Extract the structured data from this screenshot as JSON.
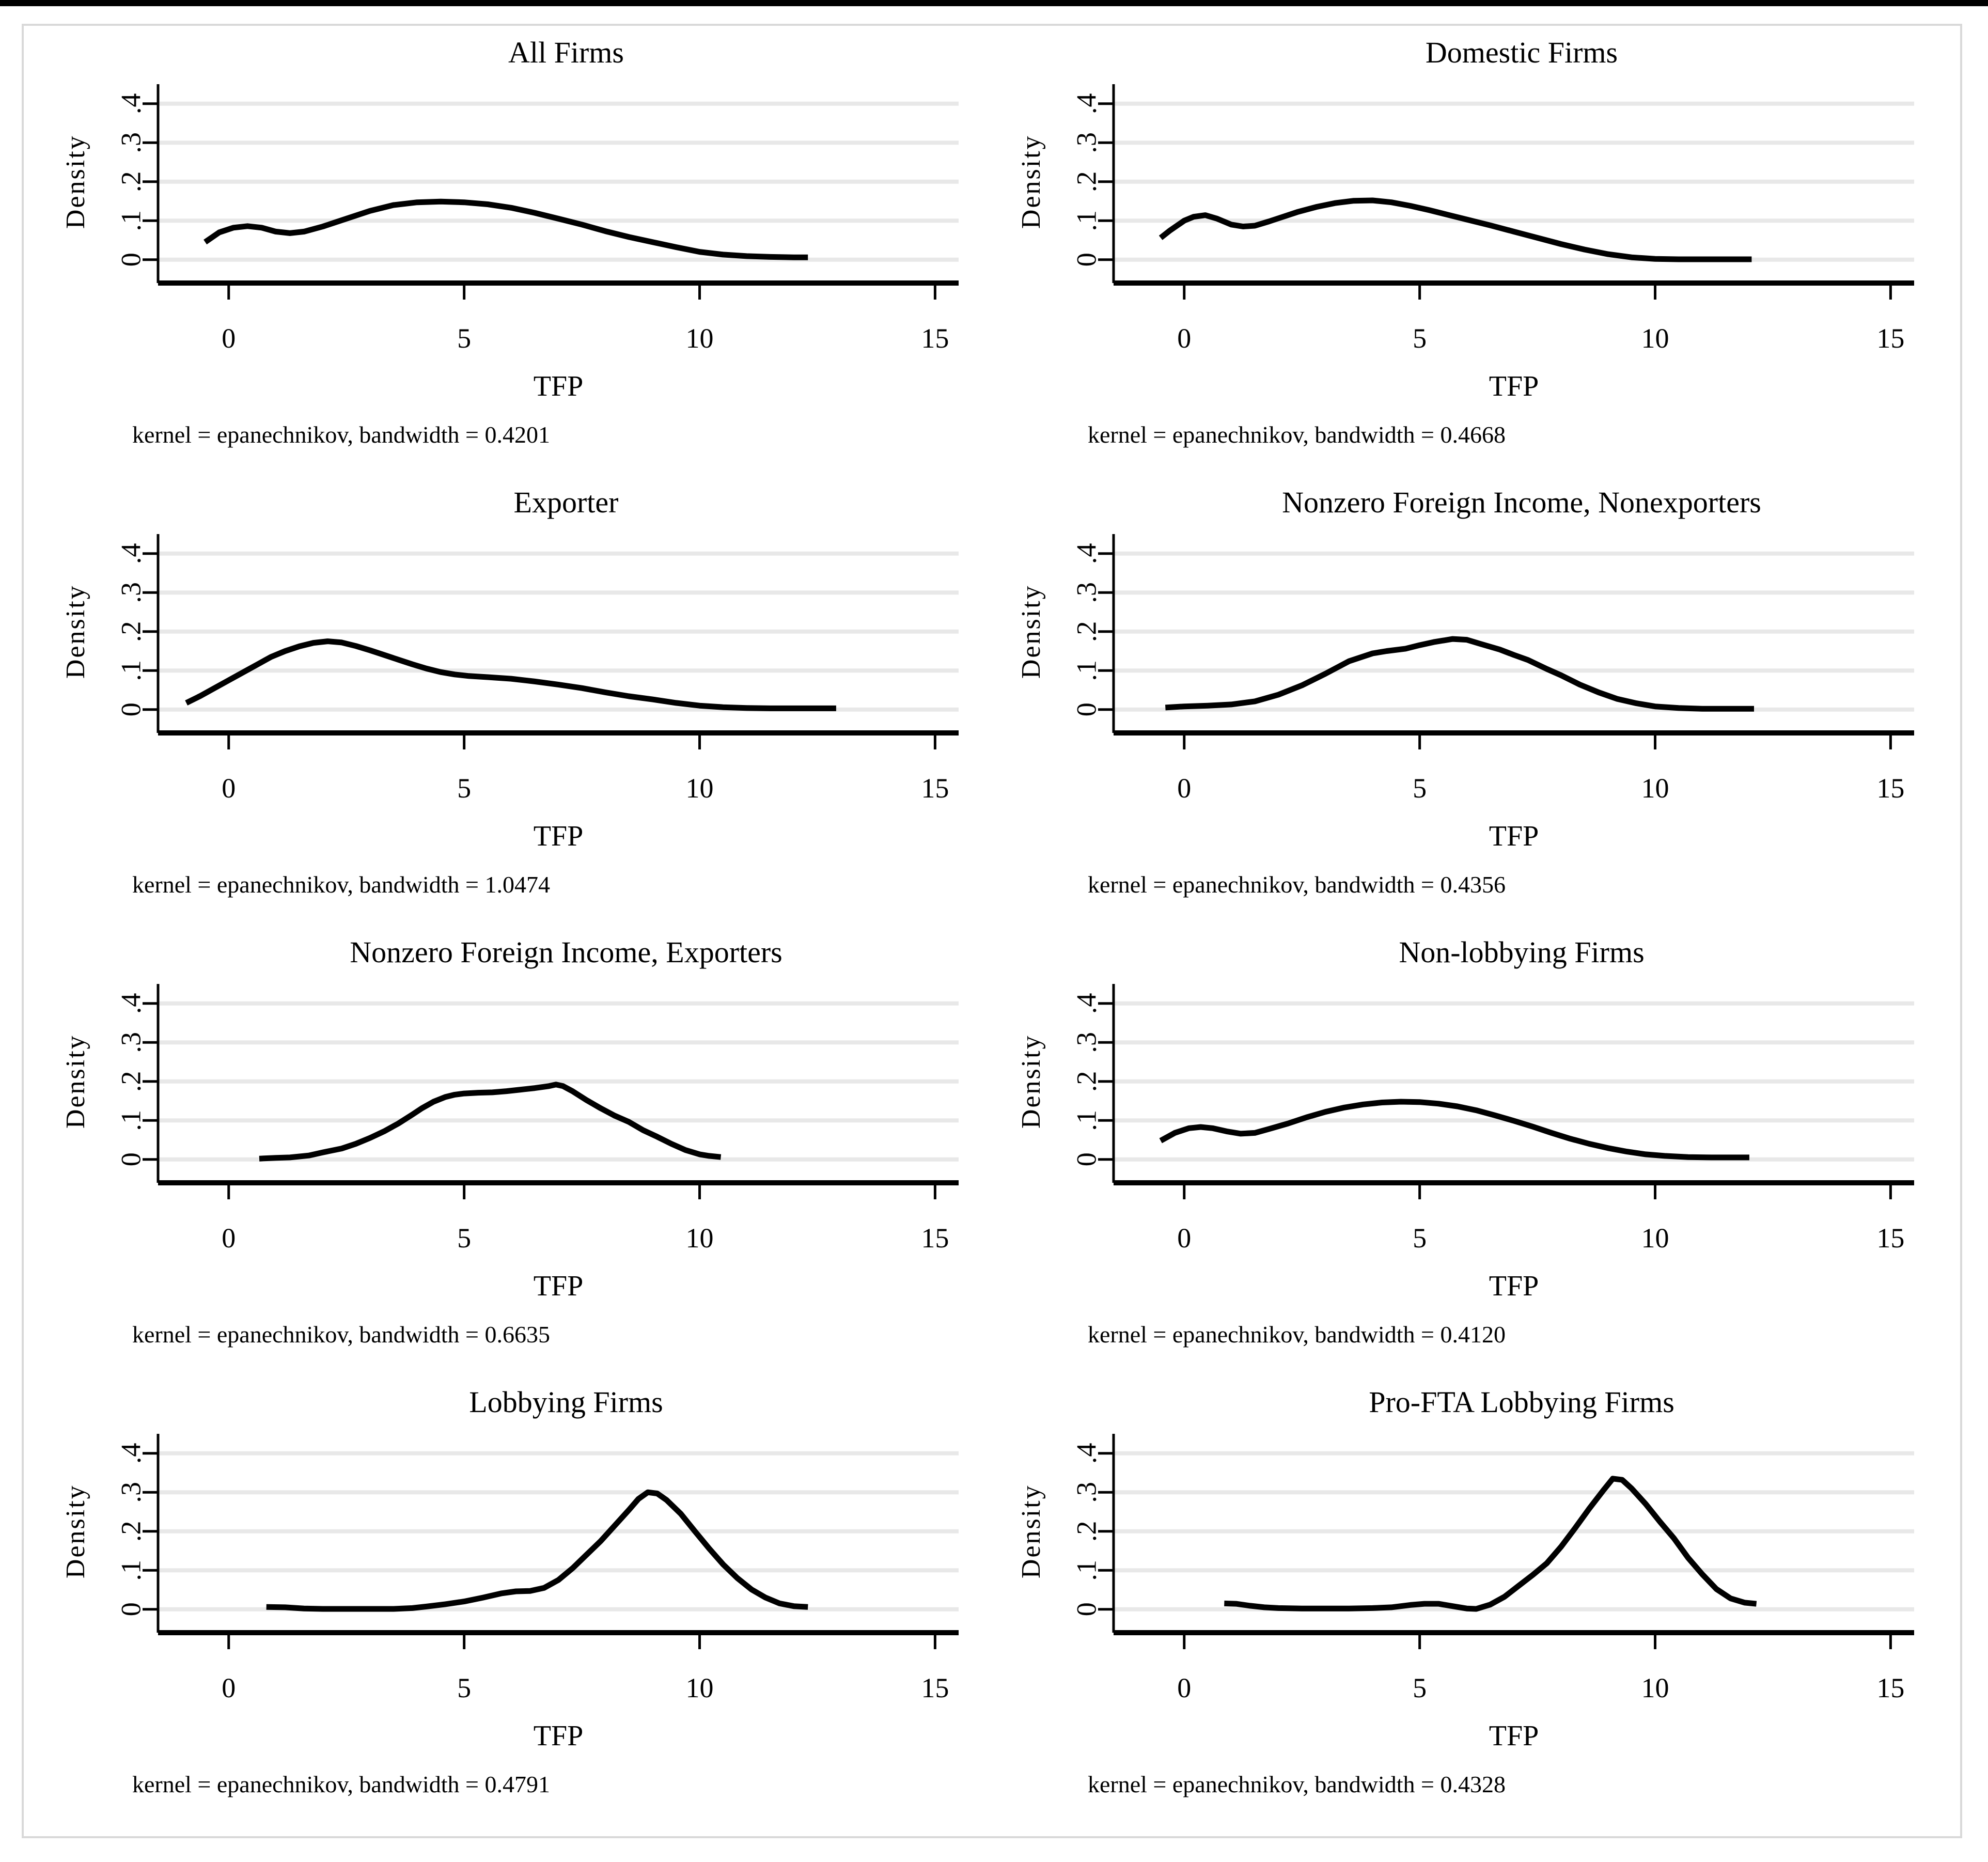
{
  "figure": {
    "ylabel": "Density",
    "xlabel": "TFP",
    "y_tick_labels": [
      "0",
      ".1",
      ".2",
      ".3",
      ".4"
    ],
    "x_tick_labels": [
      "0",
      "5",
      "10",
      "15"
    ],
    "curve_color": "#000000",
    "gridline_color": "#e8e8e8",
    "background_color": "#ffffff"
  },
  "chart_data": [
    {
      "type": "line",
      "title": "All Firms",
      "kernel": "epanechnikov",
      "bandwidth": "0.4201",
      "caption": "kernel = epanechnikov, bandwidth = 0.4201",
      "xlabel": "TFP",
      "ylabel": "Density",
      "xlim": [
        -1.5,
        15.5
      ],
      "ylim": [
        -0.06,
        0.45
      ],
      "x_ticks": [
        0,
        5,
        10,
        15
      ],
      "y_ticks": [
        0,
        0.1,
        0.2,
        0.3,
        0.4
      ],
      "grid": "horizontal",
      "legend": "none",
      "points": [
        [
          -0.5,
          0.045
        ],
        [
          -0.2,
          0.07
        ],
        [
          0.1,
          0.082
        ],
        [
          0.4,
          0.086
        ],
        [
          0.7,
          0.082
        ],
        [
          1.0,
          0.072
        ],
        [
          1.3,
          0.068
        ],
        [
          1.6,
          0.072
        ],
        [
          2.0,
          0.085
        ],
        [
          2.5,
          0.105
        ],
        [
          3.0,
          0.125
        ],
        [
          3.5,
          0.14
        ],
        [
          4.0,
          0.147
        ],
        [
          4.5,
          0.149
        ],
        [
          5.0,
          0.147
        ],
        [
          5.5,
          0.142
        ],
        [
          6.0,
          0.133
        ],
        [
          6.5,
          0.12
        ],
        [
          7.0,
          0.105
        ],
        [
          7.5,
          0.09
        ],
        [
          8.0,
          0.073
        ],
        [
          8.5,
          0.058
        ],
        [
          9.0,
          0.045
        ],
        [
          9.5,
          0.032
        ],
        [
          10.0,
          0.02
        ],
        [
          10.5,
          0.013
        ],
        [
          11.0,
          0.009
        ],
        [
          11.5,
          0.007
        ],
        [
          12.0,
          0.006
        ],
        [
          12.3,
          0.006
        ]
      ]
    },
    {
      "type": "line",
      "title": "Domestic Firms",
      "kernel": "epanechnikov",
      "bandwidth": "0.4668",
      "caption": "kernel = epanechnikov, bandwidth = 0.4668",
      "xlabel": "TFP",
      "ylabel": "Density",
      "xlim": [
        -1.5,
        15.5
      ],
      "ylim": [
        -0.06,
        0.45
      ],
      "x_ticks": [
        0,
        5,
        10,
        15
      ],
      "y_ticks": [
        0,
        0.1,
        0.2,
        0.3,
        0.4
      ],
      "grid": "horizontal",
      "legend": "none",
      "points": [
        [
          -0.5,
          0.056
        ],
        [
          -0.3,
          0.075
        ],
        [
          0.0,
          0.1
        ],
        [
          0.2,
          0.11
        ],
        [
          0.45,
          0.114
        ],
        [
          0.7,
          0.105
        ],
        [
          1.0,
          0.09
        ],
        [
          1.25,
          0.085
        ],
        [
          1.5,
          0.087
        ],
        [
          1.8,
          0.098
        ],
        [
          2.1,
          0.11
        ],
        [
          2.4,
          0.122
        ],
        [
          2.8,
          0.135
        ],
        [
          3.2,
          0.145
        ],
        [
          3.6,
          0.151
        ],
        [
          4.0,
          0.152
        ],
        [
          4.4,
          0.147
        ],
        [
          4.8,
          0.138
        ],
        [
          5.2,
          0.127
        ],
        [
          5.6,
          0.115
        ],
        [
          6.0,
          0.103
        ],
        [
          6.5,
          0.088
        ],
        [
          7.0,
          0.072
        ],
        [
          7.5,
          0.056
        ],
        [
          8.0,
          0.04
        ],
        [
          8.5,
          0.026
        ],
        [
          9.0,
          0.014
        ],
        [
          9.5,
          0.006
        ],
        [
          10.0,
          0.002
        ],
        [
          10.5,
          0.001
        ],
        [
          11.2,
          0.001
        ],
        [
          12.05,
          0.001
        ]
      ]
    },
    {
      "type": "line",
      "title": "Exporter",
      "kernel": "epanechnikov",
      "bandwidth": "1.0474",
      "caption": "kernel = epanechnikov, bandwidth = 1.0474",
      "xlabel": "TFP",
      "ylabel": "Density",
      "xlim": [
        -1.5,
        15.5
      ],
      "ylim": [
        -0.06,
        0.45
      ],
      "x_ticks": [
        0,
        5,
        10,
        15
      ],
      "y_ticks": [
        0,
        0.1,
        0.2,
        0.3,
        0.4
      ],
      "grid": "horizontal",
      "legend": "none",
      "points": [
        [
          -0.9,
          0.017
        ],
        [
          -0.6,
          0.035
        ],
        [
          -0.3,
          0.055
        ],
        [
          0.0,
          0.075
        ],
        [
          0.3,
          0.095
        ],
        [
          0.6,
          0.115
        ],
        [
          0.9,
          0.135
        ],
        [
          1.2,
          0.15
        ],
        [
          1.5,
          0.162
        ],
        [
          1.8,
          0.171
        ],
        [
          2.1,
          0.175
        ],
        [
          2.4,
          0.172
        ],
        [
          2.7,
          0.163
        ],
        [
          3.0,
          0.152
        ],
        [
          3.3,
          0.14
        ],
        [
          3.6,
          0.128
        ],
        [
          3.9,
          0.116
        ],
        [
          4.2,
          0.105
        ],
        [
          4.5,
          0.096
        ],
        [
          4.8,
          0.09
        ],
        [
          5.1,
          0.086
        ],
        [
          5.5,
          0.083
        ],
        [
          6.0,
          0.079
        ],
        [
          6.5,
          0.072
        ],
        [
          7.0,
          0.064
        ],
        [
          7.5,
          0.055
        ],
        [
          8.0,
          0.044
        ],
        [
          8.5,
          0.034
        ],
        [
          9.0,
          0.026
        ],
        [
          9.5,
          0.017
        ],
        [
          10.0,
          0.01
        ],
        [
          10.5,
          0.006
        ],
        [
          11.0,
          0.004
        ],
        [
          11.5,
          0.003
        ],
        [
          12.0,
          0.003
        ],
        [
          12.5,
          0.003
        ],
        [
          12.9,
          0.003
        ]
      ]
    },
    {
      "type": "line",
      "title": "Nonzero Foreign Income, Nonexporters",
      "kernel": "epanechnikov",
      "bandwidth": "0.4356",
      "caption": "kernel = epanechnikov, bandwidth = 0.4356",
      "xlabel": "TFP",
      "ylabel": "Density",
      "xlim": [
        -1.5,
        15.5
      ],
      "ylim": [
        -0.06,
        0.45
      ],
      "x_ticks": [
        0,
        5,
        10,
        15
      ],
      "y_ticks": [
        0,
        0.1,
        0.2,
        0.3,
        0.4
      ],
      "grid": "horizontal",
      "legend": "none",
      "points": [
        [
          -0.4,
          0.005
        ],
        [
          0.0,
          0.008
        ],
        [
          0.5,
          0.01
        ],
        [
          1.0,
          0.013
        ],
        [
          1.5,
          0.021
        ],
        [
          2.0,
          0.038
        ],
        [
          2.5,
          0.062
        ],
        [
          3.0,
          0.092
        ],
        [
          3.5,
          0.124
        ],
        [
          4.0,
          0.144
        ],
        [
          4.3,
          0.15
        ],
        [
          4.7,
          0.156
        ],
        [
          5.0,
          0.165
        ],
        [
          5.3,
          0.173
        ],
        [
          5.7,
          0.181
        ],
        [
          6.0,
          0.179
        ],
        [
          6.3,
          0.168
        ],
        [
          6.7,
          0.154
        ],
        [
          7.0,
          0.14
        ],
        [
          7.3,
          0.127
        ],
        [
          7.7,
          0.104
        ],
        [
          8.0,
          0.088
        ],
        [
          8.4,
          0.064
        ],
        [
          8.8,
          0.044
        ],
        [
          9.2,
          0.027
        ],
        [
          9.6,
          0.016
        ],
        [
          10.0,
          0.008
        ],
        [
          10.5,
          0.004
        ],
        [
          11.0,
          0.002
        ],
        [
          11.5,
          0.002
        ],
        [
          12.1,
          0.002
        ]
      ]
    },
    {
      "type": "line",
      "title": "Nonzero Foreign Income, Exporters",
      "kernel": "epanechnikov",
      "bandwidth": "0.6635",
      "caption": "kernel = epanechnikov, bandwidth = 0.6635",
      "xlabel": "TFP",
      "ylabel": "Density",
      "xlim": [
        -1.5,
        15.5
      ],
      "ylim": [
        -0.06,
        0.45
      ],
      "x_ticks": [
        0,
        5,
        10,
        15
      ],
      "y_ticks": [
        0,
        0.1,
        0.2,
        0.3,
        0.4
      ],
      "grid": "horizontal",
      "legend": "none",
      "points": [
        [
          0.65,
          0.002
        ],
        [
          1.0,
          0.004
        ],
        [
          1.3,
          0.005
        ],
        [
          1.7,
          0.01
        ],
        [
          2.0,
          0.018
        ],
        [
          2.4,
          0.028
        ],
        [
          2.7,
          0.04
        ],
        [
          3.0,
          0.055
        ],
        [
          3.3,
          0.072
        ],
        [
          3.6,
          0.092
        ],
        [
          3.9,
          0.115
        ],
        [
          4.1,
          0.131
        ],
        [
          4.35,
          0.148
        ],
        [
          4.6,
          0.16
        ],
        [
          4.8,
          0.166
        ],
        [
          5.0,
          0.169
        ],
        [
          5.3,
          0.171
        ],
        [
          5.6,
          0.172
        ],
        [
          5.9,
          0.175
        ],
        [
          6.2,
          0.179
        ],
        [
          6.5,
          0.183
        ],
        [
          6.8,
          0.188
        ],
        [
          6.95,
          0.192
        ],
        [
          7.1,
          0.188
        ],
        [
          7.3,
          0.175
        ],
        [
          7.6,
          0.152
        ],
        [
          7.9,
          0.131
        ],
        [
          8.2,
          0.112
        ],
        [
          8.5,
          0.096
        ],
        [
          8.8,
          0.075
        ],
        [
          9.1,
          0.058
        ],
        [
          9.4,
          0.04
        ],
        [
          9.7,
          0.024
        ],
        [
          10.0,
          0.013
        ],
        [
          10.2,
          0.009
        ],
        [
          10.45,
          0.006
        ]
      ]
    },
    {
      "type": "line",
      "title": "Non-lobbying Firms",
      "kernel": "epanechnikov",
      "bandwidth": "0.4120",
      "caption": "kernel = epanechnikov, bandwidth = 0.4120",
      "xlabel": "TFP",
      "ylabel": "Density",
      "xlim": [
        -1.5,
        15.5
      ],
      "ylim": [
        -0.06,
        0.45
      ],
      "x_ticks": [
        0,
        5,
        10,
        15
      ],
      "y_ticks": [
        0,
        0.1,
        0.2,
        0.3,
        0.4
      ],
      "grid": "horizontal",
      "legend": "none",
      "points": [
        [
          -0.5,
          0.048
        ],
        [
          -0.2,
          0.068
        ],
        [
          0.1,
          0.08
        ],
        [
          0.35,
          0.083
        ],
        [
          0.6,
          0.08
        ],
        [
          0.9,
          0.072
        ],
        [
          1.2,
          0.066
        ],
        [
          1.5,
          0.068
        ],
        [
          1.8,
          0.078
        ],
        [
          2.2,
          0.092
        ],
        [
          2.6,
          0.108
        ],
        [
          3.0,
          0.122
        ],
        [
          3.4,
          0.133
        ],
        [
          3.8,
          0.141
        ],
        [
          4.2,
          0.146
        ],
        [
          4.6,
          0.148
        ],
        [
          5.0,
          0.147
        ],
        [
          5.4,
          0.143
        ],
        [
          5.8,
          0.136
        ],
        [
          6.2,
          0.126
        ],
        [
          6.6,
          0.113
        ],
        [
          7.0,
          0.099
        ],
        [
          7.4,
          0.084
        ],
        [
          7.8,
          0.068
        ],
        [
          8.2,
          0.053
        ],
        [
          8.6,
          0.04
        ],
        [
          9.0,
          0.029
        ],
        [
          9.4,
          0.02
        ],
        [
          9.8,
          0.013
        ],
        [
          10.2,
          0.009
        ],
        [
          10.7,
          0.006
        ],
        [
          11.2,
          0.005
        ],
        [
          12.0,
          0.005
        ]
      ]
    },
    {
      "type": "line",
      "title": "Lobbying Firms",
      "kernel": "epanechnikov",
      "bandwidth": "0.4791",
      "caption": "kernel = epanechnikov, bandwidth = 0.4791",
      "xlabel": "TFP",
      "ylabel": "Density",
      "xlim": [
        -1.5,
        15.5
      ],
      "ylim": [
        -0.06,
        0.45
      ],
      "x_ticks": [
        0,
        5,
        10,
        15
      ],
      "y_ticks": [
        0,
        0.1,
        0.2,
        0.3,
        0.4
      ],
      "grid": "horizontal",
      "legend": "none",
      "points": [
        [
          0.8,
          0.006
        ],
        [
          1.2,
          0.005
        ],
        [
          1.6,
          0.002
        ],
        [
          2.0,
          0.001
        ],
        [
          2.5,
          0.001
        ],
        [
          3.0,
          0.001
        ],
        [
          3.5,
          0.001
        ],
        [
          3.9,
          0.003
        ],
        [
          4.2,
          0.007
        ],
        [
          4.6,
          0.013
        ],
        [
          5.0,
          0.02
        ],
        [
          5.4,
          0.03
        ],
        [
          5.8,
          0.041
        ],
        [
          6.1,
          0.046
        ],
        [
          6.4,
          0.047
        ],
        [
          6.7,
          0.055
        ],
        [
          7.0,
          0.075
        ],
        [
          7.3,
          0.105
        ],
        [
          7.6,
          0.14
        ],
        [
          7.9,
          0.175
        ],
        [
          8.2,
          0.215
        ],
        [
          8.5,
          0.255
        ],
        [
          8.7,
          0.283
        ],
        [
          8.9,
          0.3
        ],
        [
          9.1,
          0.297
        ],
        [
          9.3,
          0.28
        ],
        [
          9.6,
          0.245
        ],
        [
          9.9,
          0.2
        ],
        [
          10.2,
          0.156
        ],
        [
          10.5,
          0.115
        ],
        [
          10.8,
          0.08
        ],
        [
          11.1,
          0.051
        ],
        [
          11.4,
          0.03
        ],
        [
          11.7,
          0.015
        ],
        [
          12.0,
          0.008
        ],
        [
          12.3,
          0.006
        ]
      ]
    },
    {
      "type": "line",
      "title": "Pro-FTA Lobbying Firms",
      "kernel": "epanechnikov",
      "bandwidth": "0.4328",
      "caption": "kernel = epanechnikov, bandwidth = 0.4328",
      "xlabel": "TFP",
      "ylabel": "Density",
      "xlim": [
        -1.5,
        15.5
      ],
      "ylim": [
        -0.06,
        0.45
      ],
      "x_ticks": [
        0,
        5,
        10,
        15
      ],
      "y_ticks": [
        0,
        0.1,
        0.2,
        0.3,
        0.4
      ],
      "grid": "horizontal",
      "legend": "none",
      "points": [
        [
          0.85,
          0.015
        ],
        [
          1.1,
          0.014
        ],
        [
          1.4,
          0.009
        ],
        [
          1.7,
          0.005
        ],
        [
          2.0,
          0.003
        ],
        [
          2.5,
          0.002
        ],
        [
          3.0,
          0.002
        ],
        [
          3.5,
          0.002
        ],
        [
          4.0,
          0.003
        ],
        [
          4.4,
          0.005
        ],
        [
          4.8,
          0.011
        ],
        [
          5.1,
          0.014
        ],
        [
          5.4,
          0.014
        ],
        [
          5.7,
          0.008
        ],
        [
          6.0,
          0.002
        ],
        [
          6.2,
          0.001
        ],
        [
          6.5,
          0.012
        ],
        [
          6.8,
          0.032
        ],
        [
          7.1,
          0.06
        ],
        [
          7.4,
          0.088
        ],
        [
          7.7,
          0.118
        ],
        [
          8.0,
          0.16
        ],
        [
          8.3,
          0.208
        ],
        [
          8.6,
          0.258
        ],
        [
          8.9,
          0.305
        ],
        [
          9.1,
          0.335
        ],
        [
          9.3,
          0.332
        ],
        [
          9.5,
          0.31
        ],
        [
          9.8,
          0.27
        ],
        [
          10.1,
          0.225
        ],
        [
          10.4,
          0.182
        ],
        [
          10.7,
          0.132
        ],
        [
          11.0,
          0.09
        ],
        [
          11.3,
          0.052
        ],
        [
          11.6,
          0.028
        ],
        [
          11.9,
          0.017
        ],
        [
          12.15,
          0.014
        ]
      ]
    }
  ]
}
